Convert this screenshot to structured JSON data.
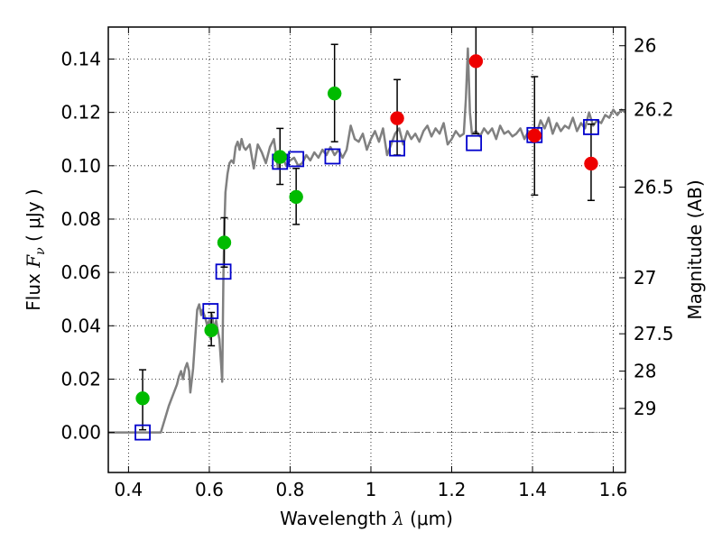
{
  "chart_data": {
    "type": "scatter",
    "title": "",
    "xlabel": {
      "prefix": "Wavelength  ",
      "symbol": "λ",
      "unit": " (μm)"
    },
    "ylabel": {
      "prefix": "Flux  ",
      "symbol": "F",
      "subscript": "ν",
      "unit": "  ( μJy )"
    },
    "y2label": "Magnitude (AB)",
    "xlim": [
      0.35,
      1.63
    ],
    "ylim": [
      -0.015,
      0.152
    ],
    "grid": true,
    "x_ticks": [
      0.4,
      0.6,
      0.8,
      1.0,
      1.2,
      1.4,
      1.6
    ],
    "x_tick_labels": [
      "0.4",
      "0.6",
      "0.8",
      "1",
      "1.2",
      "1.4",
      "1.6"
    ],
    "y_ticks": [
      0.0,
      0.02,
      0.04,
      0.06,
      0.08,
      0.1,
      0.12,
      0.14
    ],
    "y_tick_labels": [
      "0.00",
      "0.02",
      "0.04",
      "0.06",
      "0.08",
      "0.10",
      "0.12",
      "0.14"
    ],
    "y2_ticks": [
      {
        "label": "26",
        "flux": 0.145
      },
      {
        "label": "26.2",
        "flux": 0.121
      },
      {
        "label": "26.5",
        "flux": 0.092
      },
      {
        "label": "27",
        "flux": 0.058
      },
      {
        "label": "27.5",
        "flux": 0.037
      },
      {
        "label": "28",
        "flux": 0.023
      },
      {
        "label": "29",
        "flux": 0.009
      }
    ],
    "series": [
      {
        "kind": "sed_model_line",
        "color": "#808080",
        "x": [
          0.35,
          0.48,
          0.49,
          0.5,
          0.51,
          0.52,
          0.525,
          0.53,
          0.535,
          0.54,
          0.545,
          0.55,
          0.553,
          0.56,
          0.565,
          0.57,
          0.575,
          0.58,
          0.583,
          0.59,
          0.595,
          0.6,
          0.603,
          0.607,
          0.612,
          0.617,
          0.62,
          0.625,
          0.63,
          0.632,
          0.635,
          0.638,
          0.64,
          0.645,
          0.65,
          0.655,
          0.66,
          0.665,
          0.67,
          0.675,
          0.68,
          0.685,
          0.69,
          0.7,
          0.71,
          0.72,
          0.73,
          0.74,
          0.75,
          0.76,
          0.77,
          0.78,
          0.79,
          0.8,
          0.81,
          0.82,
          0.83,
          0.84,
          0.85,
          0.86,
          0.87,
          0.88,
          0.89,
          0.9,
          0.91,
          0.92,
          0.93,
          0.94,
          0.95,
          0.96,
          0.97,
          0.98,
          0.99,
          1.0,
          1.01,
          1.02,
          1.03,
          1.04,
          1.05,
          1.06,
          1.07,
          1.08,
          1.09,
          1.1,
          1.11,
          1.12,
          1.13,
          1.14,
          1.15,
          1.16,
          1.17,
          1.18,
          1.19,
          1.2,
          1.21,
          1.22,
          1.23,
          1.235,
          1.24,
          1.245,
          1.25,
          1.26,
          1.27,
          1.28,
          1.29,
          1.3,
          1.31,
          1.32,
          1.33,
          1.34,
          1.35,
          1.36,
          1.37,
          1.38,
          1.39,
          1.4,
          1.41,
          1.42,
          1.43,
          1.44,
          1.45,
          1.46,
          1.47,
          1.48,
          1.49,
          1.5,
          1.51,
          1.52,
          1.53,
          1.54,
          1.55,
          1.56,
          1.57,
          1.58,
          1.59,
          1.6,
          1.61,
          1.62,
          1.63
        ],
        "y": [
          0.0,
          0.0,
          0.005,
          0.01,
          0.014,
          0.018,
          0.021,
          0.023,
          0.02,
          0.024,
          0.026,
          0.023,
          0.015,
          0.024,
          0.035,
          0.046,
          0.048,
          0.044,
          0.046,
          0.043,
          0.04,
          0.042,
          0.035,
          0.044,
          0.038,
          0.042,
          0.039,
          0.035,
          0.024,
          0.019,
          0.06,
          0.08,
          0.09,
          0.097,
          0.101,
          0.102,
          0.101,
          0.107,
          0.109,
          0.106,
          0.11,
          0.107,
          0.106,
          0.108,
          0.099,
          0.108,
          0.105,
          0.101,
          0.107,
          0.11,
          0.099,
          0.104,
          0.1,
          0.102,
          0.103,
          0.1,
          0.101,
          0.104,
          0.102,
          0.105,
          0.103,
          0.106,
          0.104,
          0.107,
          0.104,
          0.106,
          0.103,
          0.106,
          0.115,
          0.11,
          0.109,
          0.112,
          0.106,
          0.11,
          0.113,
          0.109,
          0.114,
          0.104,
          0.108,
          0.112,
          0.114,
          0.108,
          0.113,
          0.11,
          0.112,
          0.109,
          0.113,
          0.115,
          0.111,
          0.114,
          0.112,
          0.116,
          0.108,
          0.11,
          0.113,
          0.111,
          0.112,
          0.125,
          0.144,
          0.12,
          0.112,
          0.113,
          0.111,
          0.114,
          0.112,
          0.114,
          0.11,
          0.115,
          0.112,
          0.113,
          0.111,
          0.112,
          0.114,
          0.11,
          0.113,
          0.111,
          0.112,
          0.117,
          0.114,
          0.118,
          0.112,
          0.116,
          0.113,
          0.115,
          0.114,
          0.118,
          0.113,
          0.116,
          0.114,
          0.12,
          0.115,
          0.117,
          0.116,
          0.119,
          0.118,
          0.121,
          0.119,
          0.121,
          0.12
        ]
      },
      {
        "kind": "model_band_squares",
        "color": "#0000cc",
        "points": [
          {
            "x": 0.435,
            "y": 0.0
          },
          {
            "x": 0.603,
            "y": 0.0455
          },
          {
            "x": 0.635,
            "y": 0.0603
          },
          {
            "x": 0.775,
            "y": 0.1015
          },
          {
            "x": 0.815,
            "y": 0.1025
          },
          {
            "x": 0.905,
            "y": 0.1035
          },
          {
            "x": 1.065,
            "y": 0.1065
          },
          {
            "x": 1.255,
            "y": 0.1085
          },
          {
            "x": 1.405,
            "y": 0.1115
          },
          {
            "x": 1.545,
            "y": 0.1145
          }
        ]
      },
      {
        "kind": "optical_photometry",
        "color": "#00bb00",
        "points": [
          {
            "x": 0.435,
            "y": 0.0128,
            "yerr_lo": 0.0118,
            "yerr_hi": 0.0107
          },
          {
            "x": 0.605,
            "y": 0.0383,
            "yerr_lo": 0.0058,
            "yerr_hi": 0.0067
          },
          {
            "x": 0.637,
            "y": 0.0712,
            "yerr_lo": 0.0092,
            "yerr_hi": 0.0093
          },
          {
            "x": 0.775,
            "y": 0.1033,
            "yerr_lo": 0.0103,
            "yerr_hi": 0.0107
          },
          {
            "x": 0.815,
            "y": 0.0883,
            "yerr_lo": 0.0103,
            "yerr_hi": 0.0107
          },
          {
            "x": 0.91,
            "y": 0.1271,
            "yerr_lo": 0.0181,
            "yerr_hi": 0.0184
          }
        ]
      },
      {
        "kind": "nir_photometry",
        "color": "#ee0000",
        "points": [
          {
            "x": 1.065,
            "y": 0.1178,
            "yerr_lo": 0.0138,
            "yerr_hi": 0.0145
          },
          {
            "x": 1.26,
            "y": 0.1392,
            "yerr_lo": 0.0272,
            "yerr_hi": 0.0138
          },
          {
            "x": 1.405,
            "y": 0.1113,
            "yerr_lo": 0.0223,
            "yerr_hi": 0.0221
          },
          {
            "x": 1.545,
            "y": 0.1008,
            "yerr_lo": 0.0138,
            "yerr_hi": 0.0148
          }
        ]
      }
    ]
  }
}
